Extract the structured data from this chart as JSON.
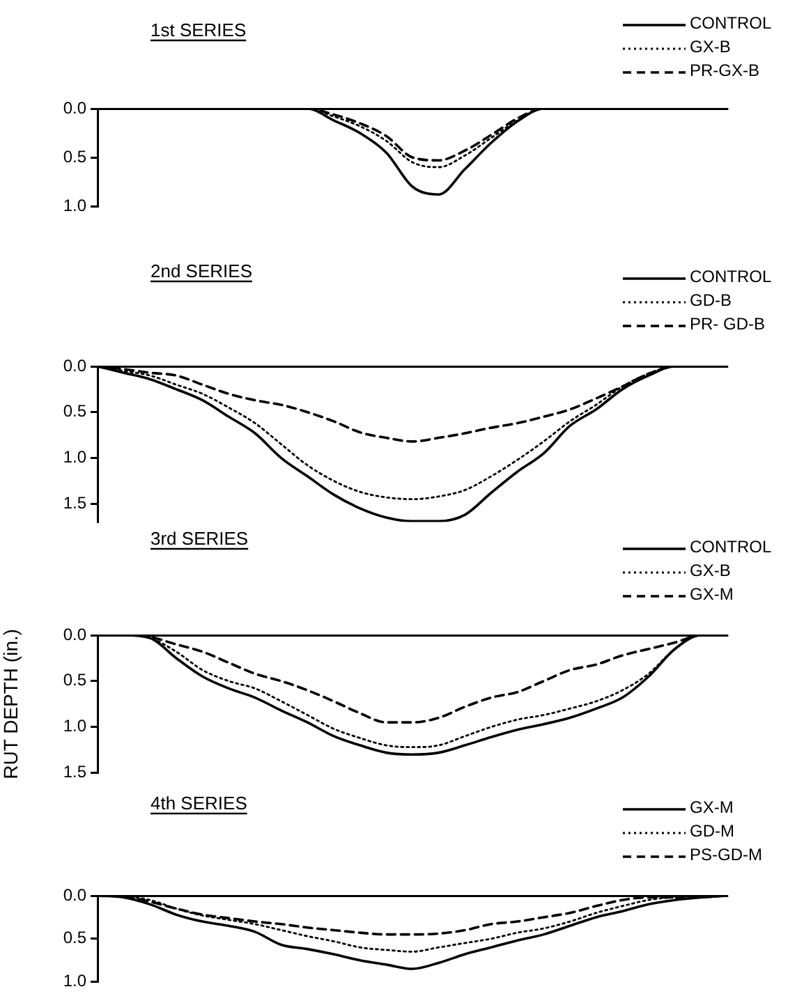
{
  "chart_data": [
    {
      "type": "line",
      "title": "1st SERIES",
      "categories": [
        null,
        null,
        null,
        null,
        null,
        null,
        null,
        null,
        null,
        null,
        null,
        null,
        null,
        null,
        null,
        null,
        null,
        null,
        null,
        null,
        null,
        null,
        null,
        null,
        null
      ],
      "ylim": [
        1,
        0
      ],
      "yticks": [
        {
          "value": 0,
          "label": "0.0"
        },
        {
          "value": 0.5,
          "label": "0.5"
        },
        {
          "value": 1,
          "label": "1.0"
        }
      ],
      "grid": false,
      "legend": "top right",
      "tick_labels": "y",
      "marker": "none",
      "series": [
        {
          "name": "CONTROL",
          "color": "#000000",
          "line_style": "solid",
          "values": [
            0,
            0,
            0,
            0,
            0,
            0,
            0,
            0,
            0,
            0.12,
            0.25,
            0.45,
            0.8,
            0.88,
            0.62,
            0.35,
            0.13,
            0,
            0,
            0,
            0,
            0,
            0,
            0,
            0
          ]
        },
        {
          "name": "GX-B",
          "color": "#000000",
          "line_style": "dotted",
          "values": [
            0,
            0,
            0,
            0,
            0,
            0,
            0,
            0,
            0,
            0.08,
            0.18,
            0.33,
            0.55,
            0.6,
            0.48,
            0.3,
            0.12,
            0,
            0,
            0,
            0,
            0,
            0,
            0,
            0
          ]
        },
        {
          "name": "PR-GX-B",
          "color": "#000000",
          "line_style": "dashed",
          "values": [
            0,
            0,
            0,
            0,
            0,
            0,
            0,
            0,
            0,
            0.06,
            0.15,
            0.28,
            0.5,
            0.53,
            0.43,
            0.27,
            0.1,
            0,
            0,
            0,
            0,
            0,
            0,
            0,
            0
          ]
        }
      ]
    },
    {
      "type": "line",
      "title": "2nd SERIES",
      "categories": [
        null,
        null,
        null,
        null,
        null,
        null,
        null,
        null,
        null,
        null,
        null,
        null,
        null,
        null,
        null,
        null,
        null,
        null,
        null,
        null,
        null,
        null,
        null,
        null,
        null
      ],
      "ylim": [
        1.7,
        0
      ],
      "yticks": [
        {
          "value": 0,
          "label": "0.0"
        },
        {
          "value": 0.5,
          "label": "0.5"
        },
        {
          "value": 1,
          "label": "1.0"
        },
        {
          "value": 1.5,
          "label": "1.5"
        }
      ],
      "grid": false,
      "legend": "top right",
      "tick_labels": "y",
      "marker": "none",
      "series": [
        {
          "name": "CONTROL",
          "color": "#000000",
          "line_style": "solid",
          "values": [
            0,
            0.07,
            0.14,
            0.25,
            0.37,
            0.55,
            0.73,
            1.0,
            1.2,
            1.4,
            1.55,
            1.65,
            1.69,
            1.69,
            1.62,
            1.38,
            1.15,
            0.95,
            0.65,
            0.47,
            0.25,
            0.1,
            0,
            0,
            0
          ]
        },
        {
          "name": "GD-B",
          "color": "#000000",
          "line_style": "dotted",
          "values": [
            0,
            0.05,
            0.1,
            0.2,
            0.3,
            0.45,
            0.62,
            0.85,
            1.08,
            1.25,
            1.37,
            1.43,
            1.45,
            1.42,
            1.35,
            1.2,
            1.02,
            0.82,
            0.6,
            0.42,
            0.22,
            0.08,
            0,
            0,
            0
          ]
        },
        {
          "name": "PR- GD-B",
          "color": "#000000",
          "line_style": "dashed",
          "values": [
            0,
            0.03,
            0.07,
            0.1,
            0.2,
            0.3,
            0.37,
            0.42,
            0.5,
            0.6,
            0.72,
            0.78,
            0.82,
            0.78,
            0.73,
            0.67,
            0.62,
            0.55,
            0.47,
            0.35,
            0.22,
            0.08,
            0,
            0,
            0
          ]
        }
      ]
    },
    {
      "type": "line",
      "title": "3rd SERIES",
      "ylabel": "RUT DEPTH (in.)",
      "categories": [
        null,
        null,
        null,
        null,
        null,
        null,
        null,
        null,
        null,
        null,
        null,
        null,
        null,
        null,
        null,
        null,
        null,
        null,
        null,
        null,
        null,
        null,
        null,
        null,
        null
      ],
      "ylim": [
        1.5,
        0
      ],
      "yticks": [
        {
          "value": 0,
          "label": "0.0"
        },
        {
          "value": 0.5,
          "label": "0.5"
        },
        {
          "value": 1,
          "label": "1.0"
        },
        {
          "value": 1.5,
          "label": "1.5"
        }
      ],
      "grid": false,
      "legend": "top right",
      "tick_labels": "y",
      "marker": "none",
      "series": [
        {
          "name": "CONTROL",
          "color": "#000000",
          "line_style": "solid",
          "values": [
            0,
            0,
            0.03,
            0.25,
            0.45,
            0.58,
            0.68,
            0.82,
            0.95,
            1.1,
            1.2,
            1.28,
            1.3,
            1.28,
            1.2,
            1.11,
            1.03,
            0.97,
            0.9,
            0.8,
            0.68,
            0.45,
            0.15,
            0,
            0
          ]
        },
        {
          "name": "GX-B",
          "color": "#000000",
          "line_style": "dotted",
          "values": [
            0,
            0,
            0.03,
            0.18,
            0.38,
            0.5,
            0.58,
            0.72,
            0.87,
            1.02,
            1.12,
            1.2,
            1.22,
            1.2,
            1.1,
            1.0,
            0.92,
            0.87,
            0.8,
            0.72,
            0.6,
            0.42,
            0.15,
            0,
            0
          ]
        },
        {
          "name": "GX-M",
          "color": "#000000",
          "line_style": "dashed",
          "values": [
            0,
            0,
            0.02,
            0.1,
            0.18,
            0.3,
            0.42,
            0.5,
            0.6,
            0.72,
            0.85,
            0.95,
            0.95,
            0.9,
            0.78,
            0.68,
            0.62,
            0.5,
            0.38,
            0.32,
            0.22,
            0.15,
            0.08,
            0,
            0
          ]
        }
      ]
    },
    {
      "type": "line",
      "title": "4th SERIES",
      "categories": [
        null,
        null,
        null,
        null,
        null,
        null,
        null,
        null,
        null,
        null,
        null,
        null,
        null,
        null,
        null,
        null,
        null,
        null,
        null,
        null,
        null,
        null,
        null,
        null,
        null
      ],
      "ylim": [
        1,
        0
      ],
      "yticks": [
        {
          "value": 0,
          "label": "0.0"
        },
        {
          "value": 0.5,
          "label": "0.5"
        },
        {
          "value": 1,
          "label": "1.0"
        }
      ],
      "grid": false,
      "legend": "top right",
      "tick_labels": "y",
      "marker": "none",
      "series": [
        {
          "name": "GX-M",
          "color": "#000000",
          "line_style": "solid",
          "values": [
            0,
            0.02,
            0.1,
            0.22,
            0.3,
            0.35,
            0.42,
            0.57,
            0.62,
            0.68,
            0.75,
            0.8,
            0.85,
            0.78,
            0.68,
            0.6,
            0.52,
            0.45,
            0.35,
            0.25,
            0.18,
            0.1,
            0.05,
            0.02,
            0
          ]
        },
        {
          "name": "GD-M",
          "color": "#000000",
          "line_style": "dotted",
          "values": [
            0,
            0.01,
            0.05,
            0.15,
            0.23,
            0.28,
            0.33,
            0.4,
            0.47,
            0.53,
            0.6,
            0.63,
            0.65,
            0.6,
            0.55,
            0.5,
            0.43,
            0.38,
            0.3,
            0.2,
            0.12,
            0.05,
            0.02,
            0.02,
            0
          ]
        },
        {
          "name": "PS-GD-M",
          "color": "#000000",
          "line_style": "dashed",
          "values": [
            0,
            0.01,
            0.07,
            0.15,
            0.22,
            0.26,
            0.3,
            0.33,
            0.37,
            0.4,
            0.43,
            0.45,
            0.45,
            0.44,
            0.4,
            0.33,
            0.3,
            0.25,
            0.2,
            0.12,
            0.05,
            0.02,
            0.02,
            0.01,
            0
          ]
        }
      ]
    }
  ]
}
